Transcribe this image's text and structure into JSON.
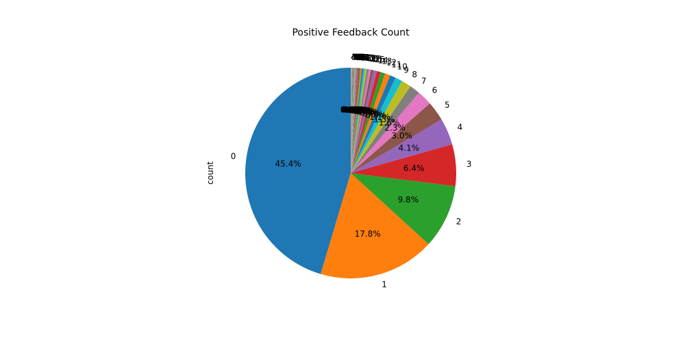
{
  "chart_data": {
    "type": "pie",
    "title": "Positive Feedback Count",
    "ylabel": "count",
    "start_angle_deg": 90,
    "direction": "counterclockwise",
    "slices": [
      {
        "label": "0",
        "value": 45.4,
        "pct_text": "45.4%",
        "color": "#1f77b4"
      },
      {
        "label": "1",
        "value": 17.8,
        "pct_text": "17.8%",
        "color": "#ff7f0e"
      },
      {
        "label": "2",
        "value": 9.8,
        "pct_text": "9.8%",
        "color": "#2ca02c"
      },
      {
        "label": "3",
        "value": 6.4,
        "pct_text": "6.4%",
        "color": "#d62728"
      },
      {
        "label": "4",
        "value": 4.1,
        "pct_text": "4.1%",
        "color": "#9467bd"
      },
      {
        "label": "5",
        "value": 3.0,
        "pct_text": "3.0%",
        "color": "#8c564b"
      },
      {
        "label": "6",
        "value": 2.3,
        "pct_text": "2.3%",
        "color": "#e377c2"
      },
      {
        "label": "7",
        "value": 1.6,
        "pct_text": "1.6%",
        "color": "#7f7f7f"
      },
      {
        "label": "8",
        "value": 1.5,
        "pct_text": "1.5%",
        "color": "#bcbd22"
      },
      {
        "label": "9",
        "value": 1.1,
        "pct_text": "1.1%",
        "color": "#17becf"
      },
      {
        "label": "10",
        "value": 0.9,
        "pct_text": "0.9%",
        "color": "#1f77b4"
      },
      {
        "label": "11",
        "value": 0.8,
        "pct_text": "0.8%",
        "color": "#ff7f0e"
      },
      {
        "label": "12",
        "value": 0.7,
        "pct_text": "0.7%",
        "color": "#2ca02c"
      },
      {
        "label": "13",
        "value": 0.6,
        "pct_text": "0.6%",
        "color": "#d62728"
      },
      {
        "label": "14",
        "value": 0.5,
        "pct_text": "0.5%",
        "color": "#9467bd"
      },
      {
        "label": "15",
        "value": 0.4,
        "pct_text": "0.4%",
        "color": "#8c564b"
      },
      {
        "label": "16",
        "value": 0.35,
        "pct_text": "0.4%",
        "color": "#e377c2"
      },
      {
        "label": "17",
        "value": 0.3,
        "pct_text": "0.3%",
        "color": "#7f7f7f"
      },
      {
        "label": "18",
        "value": 0.28,
        "pct_text": "0.3%",
        "color": "#bcbd22"
      },
      {
        "label": "19",
        "value": 0.25,
        "pct_text": "0.3%",
        "color": "#17becf"
      },
      {
        "label": "20",
        "value": 0.22,
        "pct_text": "0.2%",
        "color": "#1f77b4"
      },
      {
        "label": "21",
        "value": 0.2,
        "pct_text": "0.2%",
        "color": "#ff7f0e"
      },
      {
        "label": "22",
        "value": 0.18,
        "pct_text": "0.2%",
        "color": "#2ca02c"
      },
      {
        "label": "23",
        "value": 0.16,
        "pct_text": "0.2%",
        "color": "#d62728"
      },
      {
        "label": "24",
        "value": 0.14,
        "pct_text": "0.1%",
        "color": "#9467bd"
      },
      {
        "label": "25",
        "value": 0.12,
        "pct_text": "0.1%",
        "color": "#8c564b"
      },
      {
        "label": "26",
        "value": 0.11,
        "pct_text": "0.1%",
        "color": "#e377c2"
      },
      {
        "label": "27",
        "value": 0.1,
        "pct_text": "0.1%",
        "color": "#7f7f7f"
      },
      {
        "label": "28",
        "value": 0.09,
        "pct_text": "0.1%",
        "color": "#bcbd22"
      },
      {
        "label": "29",
        "value": 0.08,
        "pct_text": "0.1%",
        "color": "#17becf"
      },
      {
        "label": "30",
        "value": 0.07,
        "pct_text": "0.1%",
        "color": "#1f77b4"
      },
      {
        "label": "31",
        "value": 0.06,
        "pct_text": "0.1%",
        "color": "#ff7f0e"
      },
      {
        "label": "32",
        "value": 0.05,
        "pct_text": "0.1%",
        "color": "#2ca02c"
      },
      {
        "label": "33",
        "value": 0.05,
        "pct_text": "0.1%",
        "color": "#d62728"
      },
      {
        "label": "34",
        "value": 0.04,
        "pct_text": "0.0%",
        "color": "#9467bd"
      },
      {
        "label": "35",
        "value": 0.04,
        "pct_text": "0.0%",
        "color": "#8c564b"
      },
      {
        "label": "36",
        "value": 0.03,
        "pct_text": "0.0%",
        "color": "#e377c2"
      },
      {
        "label": "37",
        "value": 0.03,
        "pct_text": "0.0%",
        "color": "#7f7f7f"
      },
      {
        "label": "38",
        "value": 0.03,
        "pct_text": "0.0%",
        "color": "#bcbd22"
      },
      {
        "label": "39",
        "value": 0.02,
        "pct_text": "0.0%",
        "color": "#17becf"
      },
      {
        "label": "40",
        "value": 0.02,
        "pct_text": "0.0%",
        "color": "#1f77b4"
      },
      {
        "label": "41",
        "value": 0.02,
        "pct_text": "0.0%",
        "color": "#ff7f0e"
      },
      {
        "label": "42",
        "value": 0.02,
        "pct_text": "0.0%",
        "color": "#2ca02c"
      },
      {
        "label": "43",
        "value": 0.01,
        "pct_text": "0.0%",
        "color": "#d62728"
      },
      {
        "label": "44",
        "value": 0.01,
        "pct_text": "0.0%",
        "color": "#9467bd"
      },
      {
        "label": "45",
        "value": 0.01,
        "pct_text": "0.0%",
        "color": "#8c564b"
      }
    ]
  }
}
